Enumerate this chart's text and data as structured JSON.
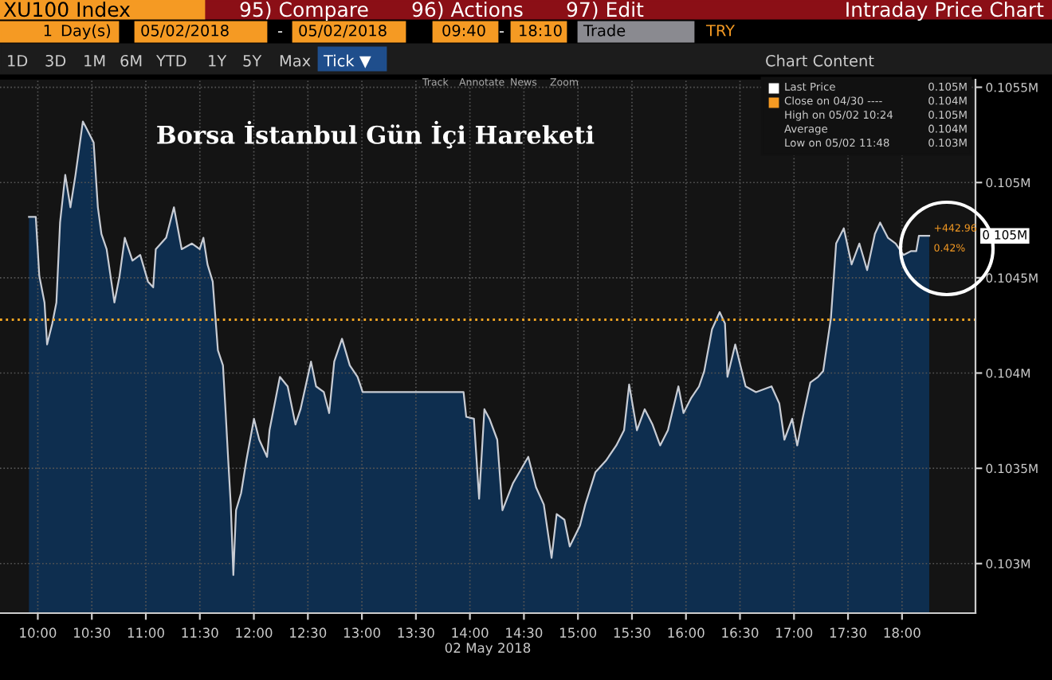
{
  "chart_data": {
    "type": "area",
    "title": "Borsa İstanbul Gün İçi Hareketi",
    "xlabel": "02 May 2018",
    "x": [
      9.918,
      9.981,
      10.014,
      10.062,
      10.086,
      10.134,
      10.172,
      10.206,
      10.254,
      10.302,
      10.349,
      10.417,
      10.445,
      10.517,
      10.556,
      10.589,
      10.637,
      10.709,
      10.757,
      10.805,
      10.876,
      10.948,
      11.02,
      11.068,
      11.092,
      11.188,
      11.26,
      11.332,
      11.427,
      11.499,
      11.533,
      11.571,
      11.619,
      11.667,
      11.714,
      11.739,
      11.763,
      11.786,
      11.81,
      11.835,
      11.882,
      11.93,
      12.001,
      12.05,
      12.122,
      12.145,
      12.241,
      12.313,
      12.385,
      12.432,
      12.529,
      12.576,
      12.648,
      12.697,
      12.744,
      12.816,
      12.888,
      12.96,
      13.007,
      13.941,
      13.966,
      14.037,
      14.085,
      14.134,
      14.181,
      14.253,
      14.301,
      14.397,
      14.54,
      14.612,
      14.684,
      14.756,
      14.803,
      14.875,
      14.924,
      15.019,
      15.068,
      15.162,
      15.259,
      15.355,
      15.427,
      15.474,
      15.546,
      15.618,
      15.69,
      15.761,
      15.833,
      15.93,
      15.977,
      16.049,
      16.121,
      16.169,
      16.241,
      16.312,
      16.361,
      16.384,
      16.456,
      16.504,
      16.552,
      16.648,
      16.792,
      16.864,
      16.911,
      16.983,
      17.03,
      17.079,
      17.151,
      17.223,
      17.27,
      17.342,
      17.39,
      17.461,
      17.533,
      17.605,
      17.677,
      17.749,
      17.797,
      17.869,
      17.941,
      18.013,
      18.085,
      18.132,
      18.156,
      18.252
    ],
    "series": [
      {
        "color": "#c8ccd4",
        "values": [
          0.10482,
          0.10482,
          0.10451,
          0.10437,
          0.10415,
          0.10426,
          0.10437,
          0.10479,
          0.10504,
          0.10487,
          0.10504,
          0.10532,
          0.10529,
          0.10521,
          0.10487,
          0.10473,
          0.10465,
          0.10437,
          0.10451,
          0.10471,
          0.10459,
          0.10462,
          0.10448,
          0.10445,
          0.10465,
          0.10471,
          0.10487,
          0.10465,
          0.10468,
          0.10465,
          0.10471,
          0.10457,
          0.10448,
          0.10412,
          0.10404,
          0.10379,
          0.10354,
          0.10331,
          0.10294,
          0.10328,
          0.10337,
          0.10354,
          0.10376,
          0.10365,
          0.10356,
          0.1037,
          0.10398,
          0.10393,
          0.10373,
          0.10381,
          0.10406,
          0.10393,
          0.1039,
          0.10379,
          0.10406,
          0.10418,
          0.10404,
          0.10398,
          0.1039,
          0.1039,
          0.10377,
          0.10376,
          0.10334,
          0.10381,
          0.10376,
          0.10365,
          0.10328,
          0.10342,
          0.10356,
          0.1034,
          0.10331,
          0.10303,
          0.10326,
          0.10323,
          0.10309,
          0.1032,
          0.10331,
          0.10348,
          0.10354,
          0.10362,
          0.1037,
          0.10394,
          0.1037,
          0.10381,
          0.10373,
          0.10362,
          0.1037,
          0.10393,
          0.10379,
          0.10387,
          0.10393,
          0.10401,
          0.10423,
          0.10432,
          0.10426,
          0.10398,
          0.10415,
          0.10404,
          0.10393,
          0.1039,
          0.10393,
          0.10384,
          0.10365,
          0.10376,
          0.10362,
          0.10376,
          0.10395,
          0.10398,
          0.10401,
          0.10429,
          0.10468,
          0.10476,
          0.10457,
          0.10468,
          0.10454,
          0.10473,
          0.10479,
          0.10471,
          0.10468,
          0.10462,
          0.10464,
          0.10464,
          0.10472,
          0.10472
        ]
      }
    ],
    "xlim": [
      9.65,
      18.68
    ],
    "ylim": [
      0.10274,
      0.10554
    ],
    "xticks": [
      {
        "value": 10,
        "label": "10:00"
      },
      {
        "value": 10.5,
        "label": "10:30"
      },
      {
        "value": 11,
        "label": "11:00"
      },
      {
        "value": 11.5,
        "label": "11:30"
      },
      {
        "value": 12,
        "label": "12:00"
      },
      {
        "value": 12.5,
        "label": "12:30"
      },
      {
        "value": 13,
        "label": "13:00"
      },
      {
        "value": 13.5,
        "label": "13:30"
      },
      {
        "value": 14,
        "label": "14:00"
      },
      {
        "value": 14.5,
        "label": "14:30"
      },
      {
        "value": 15,
        "label": "15:00"
      },
      {
        "value": 15.5,
        "label": "15:30"
      },
      {
        "value": 16,
        "label": "16:00"
      },
      {
        "value": 16.5,
        "label": "16:30"
      },
      {
        "value": 17,
        "label": "17:00"
      },
      {
        "value": 17.5,
        "label": "17:30"
      },
      {
        "value": 18,
        "label": "18:00"
      }
    ],
    "yticks": [
      {
        "value": 0.103,
        "label": "0.103M"
      },
      {
        "value": 0.1035,
        "label": "0.1035M"
      },
      {
        "value": 0.104,
        "label": "0.104M"
      },
      {
        "value": 0.1045,
        "label": "0.1045M"
      },
      {
        "value": 0.105,
        "label": "0.105M"
      },
      {
        "value": 0.1055,
        "label": "0.1055M"
      }
    ],
    "ref_lines": [
      {
        "axis": "y",
        "value": 0.10428,
        "color": "#f5a623",
        "line_style": "dotted"
      }
    ],
    "grid": true,
    "annotations": [
      "XU100 Index",
      "95) Compare",
      "96) Actions",
      "97) Edit",
      "Intraday Price Chart",
      "1",
      "Day(s)",
      "05/02/2018",
      "-",
      "05/02/2018",
      "09:40",
      "-",
      "18:10",
      "Trade",
      "TRY",
      "1D",
      "3D",
      "1M",
      "6M",
      "YTD",
      "1Y",
      "5Y",
      "Max",
      "Tick ▼",
      "Chart Content",
      "Track",
      "Annotate",
      "News",
      "Zoom",
      "Last Price",
      "0.105M",
      "Close on 04/30 ----",
      "0.104M",
      "High on 05/02 10:24",
      "0.105M",
      "Average",
      "0.104M",
      "Low on 05/02 11:48",
      "0.103M",
      {
        "text": "+442.96",
        "x": 18.252,
        "y": 0.10472
      },
      "0.42%",
      "0.105M"
    ]
  }
}
